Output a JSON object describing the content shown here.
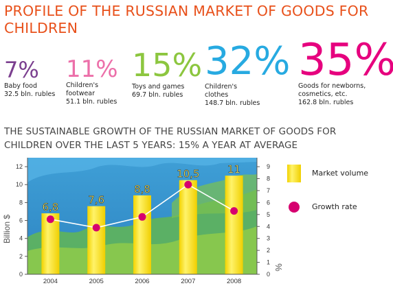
{
  "header": {
    "title": "PROFILE OF THE RUSSIAN MARKET OF GOODS FOR CHILDREN"
  },
  "stats": [
    {
      "pct": "7%",
      "name": "Baby food",
      "value": "32.5 bln. rubles",
      "color": "#7b3f8f"
    },
    {
      "pct": "11%",
      "name": "Children's\nfootwear",
      "value": "51.1 bln. rubles",
      "color": "#ec6fa9"
    },
    {
      "pct": "15%",
      "name": "Toys and games",
      "value": "69.7 bln. rubles",
      "color": "#8cc63f"
    },
    {
      "pct": "32%",
      "name": "Children's\nclothes",
      "value": "148.7 bln. rubles",
      "color": "#27aae1"
    },
    {
      "pct": "35%",
      "name": "Goods for newborns,\ncosmetics, etc.",
      "value": "162.8 bln. rubles",
      "color": "#e6007e"
    }
  ],
  "section": {
    "title": "THE SUSTAINABLE GROWTH OF THE RUSSIAN MARKET OF GOODS FOR CHILDREN OVER THE LAST 5 YEARS: 15% A YEAR AT AVERAGE"
  },
  "chart_data": {
    "type": "bar",
    "categories": [
      "2004",
      "2005",
      "2006",
      "2007",
      "2008"
    ],
    "series": [
      {
        "name": "Market volume",
        "type": "bar",
        "axis": "left",
        "values": [
          6.8,
          7.6,
          8.8,
          10.5,
          11
        ],
        "data_labels": [
          "6,8",
          "7,6",
          "8,8",
          "10,5",
          "11"
        ],
        "color": "#f5e61e"
      },
      {
        "name": "Growth rate",
        "type": "line",
        "axis": "right",
        "values": [
          4.6,
          3.9,
          4.8,
          7.5,
          5.3
        ],
        "color": "#d6006f"
      }
    ],
    "ylabel_left": "Billion $",
    "ylabel_right": "%",
    "ylim_left": [
      0,
      13
    ],
    "yticks_left": [
      "0",
      "2",
      "4",
      "6",
      "8",
      "10",
      "12"
    ],
    "ylim_right": [
      0,
      9.75
    ],
    "yticks_right": [
      "0",
      "1",
      "2",
      "3",
      "4",
      "5",
      "6",
      "7",
      "8",
      "9"
    ],
    "legend_position": "right",
    "grid": false
  }
}
